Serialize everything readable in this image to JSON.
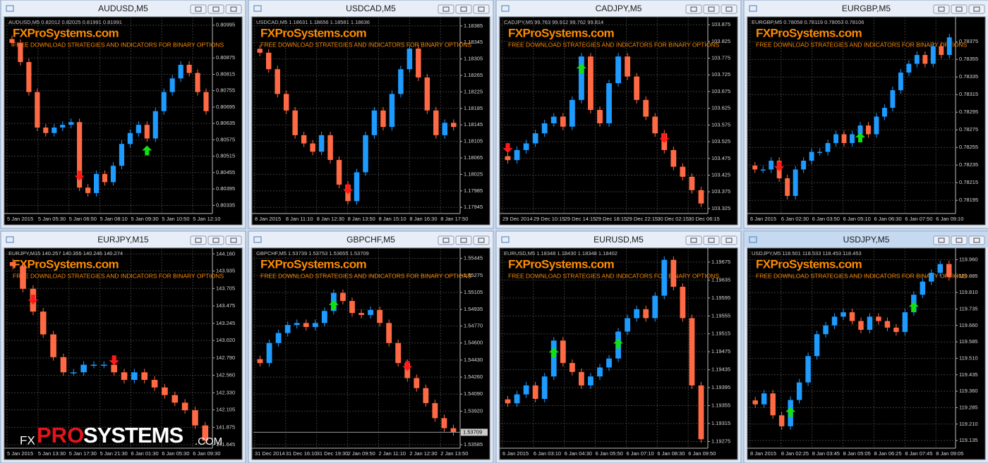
{
  "watermark": {
    "site": "FXProSystems.com",
    "tagline": "FREE DOWNLOAD STRATEGIES AND INDICATORS FOR BINARY OPTIONS"
  },
  "logo": {
    "prefix": "FX",
    "brand_red": "PRO",
    "brand_white": "SYSTEMS",
    "suffix": ".COM"
  },
  "windows": [
    {
      "title": "AUDUSD,M5",
      "info": "AUDUSD,M5  0.82012 0.82025 0.81991 0.81991",
      "ylim": [
        0.80305,
        0.81015
      ],
      "price_labels": [
        "0.80995",
        "0.80875",
        "0.80815",
        "0.80755",
        "0.80695",
        "0.80635",
        "0.80575",
        "0.80515",
        "0.80455",
        "0.80395",
        "0.80335"
      ],
      "time_labels": [
        "5 Jan 2015",
        "5 Jan 05:30",
        "5 Jan 06:50",
        "5 Jan 08:10",
        "5 Jan 09:30",
        "5 Jan 10:50",
        "5 Jan 12:10"
      ],
      "closes": [
        0.8093,
        0.8086,
        0.8075,
        0.8062,
        0.806,
        0.8062,
        0.8063,
        0.8064,
        0.804,
        0.8038,
        0.8045,
        0.8042,
        0.8048,
        0.8056,
        0.806,
        0.8063,
        0.8058,
        0.8068,
        0.8075,
        0.808,
        0.8085,
        0.8082,
        0.8075,
        0.8068
      ]
    },
    {
      "title": "USDCAD,M5",
      "info": "USDCAD,M5  1.18631 1.18656 1.18581 1.18636",
      "ylim": [
        1.1793,
        1.184
      ],
      "price_labels": [
        "1.18385",
        "1.18345",
        "1.18305",
        "1.18265",
        "1.18225",
        "1.18185",
        "1.18145",
        "1.18105",
        "1.18065",
        "1.18025",
        "1.17985",
        "1.17945"
      ],
      "time_labels": [
        "8 Jan 2015",
        "8 Jan 11:10",
        "8 Jan 12:30",
        "8 Jan 13:50",
        "8 Jan 15:10",
        "8 Jan 16:30",
        "8 Jan 17:50"
      ],
      "closes": [
        1.1832,
        1.1828,
        1.1822,
        1.1818,
        1.1812,
        1.181,
        1.1808,
        1.1812,
        1.1806,
        1.18,
        1.1796,
        1.1803,
        1.1812,
        1.1818,
        1.1814,
        1.1822,
        1.1828,
        1.1833,
        1.1826,
        1.1818,
        1.1812,
        1.1815,
        1.1814
      ]
    },
    {
      "title": "CADJPY,M5",
      "info": "CADJPY,M5  99.763 99.912 99.762 99.814",
      "ylim": [
        103.31,
        103.89
      ],
      "price_labels": [
        "103.875",
        "103.825",
        "103.775",
        "103.725",
        "103.675",
        "103.625",
        "103.575",
        "103.525",
        "103.475",
        "103.425",
        "103.375",
        "103.325"
      ],
      "time_labels": [
        "29 Dec 2014",
        "29 Dec 10:15",
        "29 Dec 14:15",
        "29 Dec 18:15",
        "29 Dec 22:15",
        "30 Dec 02:15",
        "30 Dec 06:15"
      ],
      "closes": [
        103.47,
        103.5,
        103.52,
        103.55,
        103.58,
        103.6,
        103.57,
        103.65,
        103.78,
        103.62,
        103.58,
        103.7,
        103.78,
        103.72,
        103.65,
        103.6,
        103.55,
        103.5,
        103.45,
        103.42,
        103.38,
        103.34
      ]
    },
    {
      "title": "EURGBP,M5",
      "info": "EURGBP,M5  0.78058 0.78119 0.78053 0.78106",
      "ylim": [
        0.7818,
        0.784
      ],
      "price_labels": [
        "0.78375",
        "0.78355",
        "0.78335",
        "0.78315",
        "0.78295",
        "0.78275",
        "0.78255",
        "0.78235",
        "0.78215",
        "0.78195"
      ],
      "time_labels": [
        "6 Jan 2015",
        "6 Jan 02:30",
        "6 Jan 03:50",
        "6 Jan 05:10",
        "6 Jan 06:30",
        "6 Jan 07:50",
        "6 Jan 09:10"
      ],
      "closes": [
        0.7823,
        0.7823,
        0.7824,
        0.7822,
        0.782,
        0.7823,
        0.7824,
        0.7825,
        0.7825,
        0.7826,
        0.7827,
        0.7826,
        0.7827,
        0.7828,
        0.7827,
        0.7829,
        0.783,
        0.7832,
        0.7834,
        0.7835,
        0.7836,
        0.7835,
        0.7837,
        0.7836,
        0.7838
      ]
    },
    {
      "title": "EURJPY,M15",
      "info": "EURJPY,M15  140.257 140.355 140.246 140.274",
      "ylim": [
        141.6,
        144.2
      ],
      "price_labels": [
        "144.160",
        "143.935",
        "143.705",
        "143.475",
        "143.245",
        "143.020",
        "142.790",
        "142.560",
        "142.330",
        "142.105",
        "141.875",
        "141.645"
      ],
      "time_labels": [
        "5 Jan 2015",
        "5 Jan 13:30",
        "5 Jan 17:30",
        "5 Jan 21:30",
        "6 Jan 01:30",
        "6 Jan 05:30",
        "6 Jan 09:30"
      ],
      "closes": [
        144,
        143.7,
        143.4,
        143.1,
        142.8,
        142.6,
        142.6,
        142.7,
        142.7,
        142.7,
        142.6,
        142.5,
        142.6,
        142.5,
        142.4,
        142.3,
        142.2,
        142.1,
        141.9,
        141.7
      ]
    },
    {
      "title": "GBPCHF,M5",
      "info": "GBPCHF,M5  1.53739 1.53753 1.53655 1.53709",
      "ylim": [
        1.5355,
        1.5552
      ],
      "current_price": "1.53709",
      "price_labels": [
        "1.55445",
        "1.55275",
        "1.55105",
        "1.54935",
        "1.54770",
        "1.54600",
        "1.54430",
        "1.54260",
        "1.54090",
        "1.53920",
        "1.53585"
      ],
      "time_labels": [
        "31 Dec 2014",
        "31 Dec 16:10",
        "31 Dec 19:30",
        "2 Jan 09:50",
        "2 Jan 11:10",
        "2 Jan 12:30",
        "2 Jan 13:50"
      ],
      "closes": [
        1.544,
        1.546,
        1.547,
        1.5478,
        1.548,
        1.5476,
        1.548,
        1.5492,
        1.551,
        1.5502,
        1.549,
        1.5488,
        1.5493,
        1.548,
        1.546,
        1.544,
        1.5425,
        1.5415,
        1.54,
        1.5385,
        1.5375,
        1.5371
      ]
    },
    {
      "title": "EURUSD,M5",
      "info": "EURUSD,M5  1.18348 1.18430 1.18348 1.18402",
      "ylim": [
        1.1926,
        1.197
      ],
      "price_labels": [
        "1.19675",
        "1.19635",
        "1.19595",
        "1.19555",
        "1.19515",
        "1.19475",
        "1.19435",
        "1.19395",
        "1.19355",
        "1.19315",
        "1.19275"
      ],
      "time_labels": [
        "6 Jan 2015",
        "6 Jan 03:10",
        "6 Jan 04:30",
        "6 Jan 05:50",
        "6 Jan 07:10",
        "6 Jan 08:30",
        "6 Jan 09:50"
      ],
      "closes": [
        1.1936,
        1.1938,
        1.194,
        1.1937,
        1.1942,
        1.195,
        1.1945,
        1.1943,
        1.194,
        1.1942,
        1.1944,
        1.1946,
        1.1952,
        1.1955,
        1.1957,
        1.1955,
        1.196,
        1.1968,
        1.1962,
        1.1955,
        1.194,
        1.1928
      ]
    },
    {
      "title": "USDJPY,M5",
      "info": "USDJPY,M5  118.501 118.533 118.453 118.453",
      "ylim": [
        119.1,
        120.0
      ],
      "price_labels": [
        "119.960",
        "119.885",
        "119.810",
        "119.735",
        "119.660",
        "119.585",
        "119.510",
        "119.435",
        "119.360",
        "119.285",
        "119.210",
        "119.135"
      ],
      "time_labels": [
        "8 Jan 2015",
        "8 Jan 02:25",
        "8 Jan 03:45",
        "8 Jan 05:05",
        "8 Jan 06:25",
        "8 Jan 07:45",
        "8 Jan 09:05"
      ],
      "closes": [
        119.3,
        119.35,
        119.25,
        119.2,
        119.32,
        119.4,
        119.52,
        119.62,
        119.66,
        119.7,
        119.72,
        119.68,
        119.64,
        119.7,
        119.68,
        119.65,
        119.63,
        119.72,
        119.8,
        119.86,
        119.9,
        119.94,
        119.88
      ]
    }
  ]
}
